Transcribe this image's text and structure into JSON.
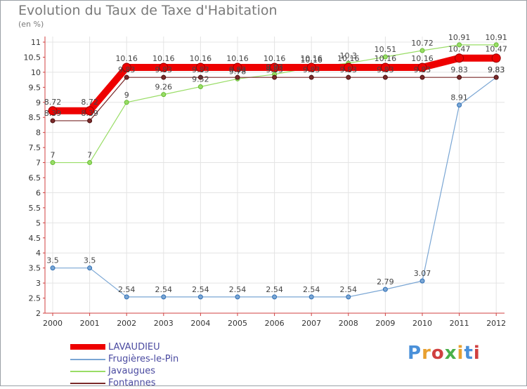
{
  "title": "Evolution du Taux de Taxe d'Habitation",
  "subtitle": "(en %)",
  "brand": {
    "text": "Proxiti",
    "letter_colors": [
      "#4a90d9",
      "#e8a030",
      "#d04040",
      "#4ab04a",
      "#e8a030",
      "#4a90d9",
      "#d04040"
    ]
  },
  "chart_data": {
    "type": "line",
    "x": [
      "2000",
      "2001",
      "2002",
      "2003",
      "2004",
      "2005",
      "2006",
      "2007",
      "2008",
      "2009",
      "2010",
      "2011",
      "2012"
    ],
    "ylim": [
      2,
      11
    ],
    "yticks": [
      "2",
      "2.5",
      "3",
      "3.5",
      "4",
      "4.5",
      "5",
      "5.5",
      "6",
      "6.5",
      "7",
      "7.5",
      "8",
      "8.5",
      "9",
      "9.5",
      "10",
      "10.5",
      "11"
    ],
    "grid": true,
    "legend_position": "bottom-left",
    "series": [
      {
        "name": "LAVAUDIEU",
        "color": "#ee0000",
        "values": [
          8.72,
          8.72,
          10.16,
          10.16,
          10.16,
          10.16,
          10.16,
          10.16,
          10.16,
          10.16,
          10.16,
          10.47,
          10.47
        ],
        "labels": [
          "8.72",
          "8.72",
          "10.16",
          "10.16",
          "10.16",
          "10.16",
          "10.16",
          "10.16",
          "10.16",
          "10.16",
          "10.16",
          "10.47",
          "10.47"
        ]
      },
      {
        "name": "Frugières-le-Pin",
        "color": "#7aa6d4",
        "values": [
          3.5,
          3.5,
          2.54,
          2.54,
          2.54,
          2.54,
          2.54,
          2.54,
          2.54,
          2.79,
          3.07,
          8.91,
          9.83
        ],
        "labels": [
          "3.5",
          "3.5",
          "2.54",
          "2.54",
          "2.54",
          "2.54",
          "2.54",
          "2.54",
          "2.54",
          "2.79",
          "3.07",
          "8.91",
          "9.83"
        ]
      },
      {
        "name": "Javaugues",
        "color": "#99dd66",
        "values": [
          7,
          7,
          9,
          9.26,
          9.52,
          9.78,
          9.93,
          10.16,
          10.3,
          10.51,
          10.72,
          10.91,
          10.91
        ],
        "labels": [
          "7",
          "7",
          "9",
          "9.26",
          "9.52",
          "9.78",
          "9.93",
          "10.16",
          "10.3",
          "10.51",
          "10.72",
          "10.91",
          "10.91"
        ]
      },
      {
        "name": "Fontannes",
        "color": "#7a2a2a",
        "values": [
          8.39,
          8.39,
          9.83,
          9.83,
          9.83,
          9.83,
          9.83,
          9.83,
          9.83,
          9.83,
          9.83,
          9.83,
          9.83
        ],
        "labels": [
          "8.39",
          "8.39",
          "9.83",
          "9.83",
          "9.83",
          "9.83",
          "9.83",
          "9.83",
          "9.83",
          "9.83",
          "9.83",
          "9.83",
          "9.83"
        ]
      }
    ]
  }
}
